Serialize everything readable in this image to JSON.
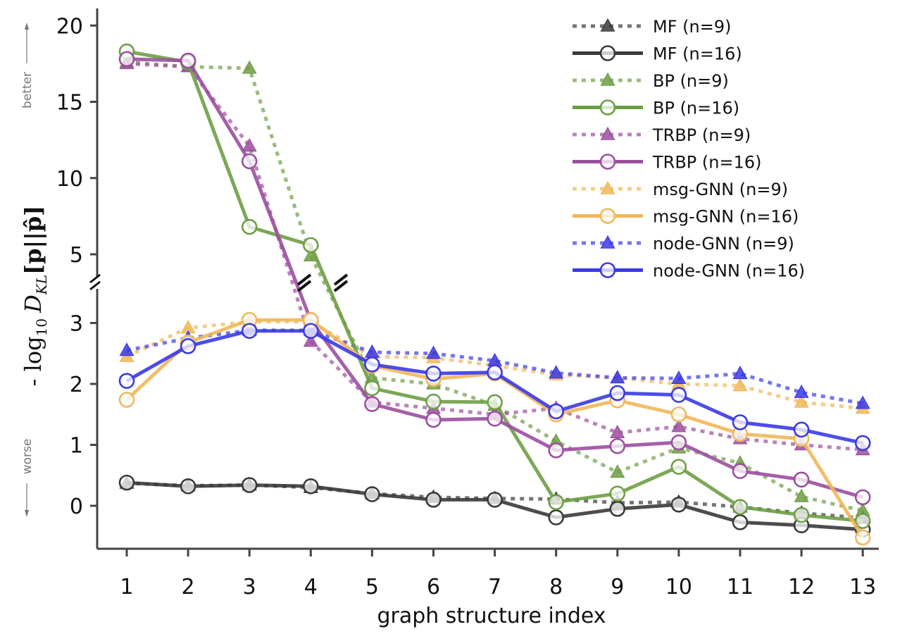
{
  "chart_data": {
    "type": "line",
    "xlabel": "graph structure index",
    "ylabel": "- log₁₀ D_KL[p||p̂]",
    "ylabel_parts": {
      "prefix": "- log",
      "sub10": "10",
      "D": "D",
      "KL": "KL",
      "arg": "[p||p̂]"
    },
    "annotations": {
      "top": "better",
      "bottom": "worse"
    },
    "x": [
      1,
      2,
      3,
      4,
      5,
      6,
      7,
      8,
      9,
      10,
      11,
      12,
      13
    ],
    "x_tick_labels": [
      "1",
      "2",
      "3",
      "4",
      "5",
      "6",
      "7",
      "8",
      "9",
      "10",
      "11",
      "12",
      "13"
    ],
    "y_axis_broken": true,
    "y_lower": {
      "range": [
        -0.7,
        3.5
      ],
      "ticks": [
        0,
        1,
        2,
        3
      ],
      "tick_labels": [
        "0",
        "1",
        "2",
        "3"
      ]
    },
    "y_upper": {
      "range": [
        3.0,
        21.0
      ],
      "ticks": [
        5,
        10,
        15,
        20
      ],
      "tick_labels": [
        "5",
        "10",
        "15",
        "20"
      ]
    },
    "grid": false,
    "legend_position": "top-right",
    "series": [
      {
        "name": "MF (n=9)",
        "color": "#3a3a3a",
        "marker": "triangle",
        "style": "dotted",
        "values": [
          0.37,
          0.33,
          0.34,
          0.3,
          0.2,
          0.14,
          0.12,
          0.11,
          0.05,
          0.06,
          -0.02,
          -0.12,
          -0.2
        ]
      },
      {
        "name": "MF (n=16)",
        "color": "#3a3a3a",
        "marker": "circle",
        "style": "solid",
        "values": [
          0.38,
          0.32,
          0.34,
          0.32,
          0.19,
          0.1,
          0.1,
          -0.19,
          -0.05,
          0.02,
          -0.27,
          -0.32,
          -0.39
        ]
      },
      {
        "name": "BP (n=9)",
        "color": "#6e9e45",
        "marker": "triangle",
        "style": "dotted",
        "values": [
          17.6,
          17.3,
          17.2,
          4.9,
          2.1,
          2.0,
          1.65,
          1.06,
          0.55,
          0.95,
          0.7,
          0.15,
          -0.08
        ]
      },
      {
        "name": "BP (n=16)",
        "color": "#6e9e45",
        "marker": "circle",
        "style": "solid",
        "values": [
          18.3,
          17.6,
          6.8,
          5.6,
          1.93,
          1.71,
          1.7,
          0.06,
          0.2,
          0.64,
          -0.02,
          -0.15,
          -0.25
        ]
      },
      {
        "name": "TRBP (n=9)",
        "color": "#9b4f9e",
        "marker": "triangle",
        "style": "dotted",
        "values": [
          17.5,
          17.3,
          12.1,
          2.7,
          1.7,
          1.6,
          1.5,
          1.6,
          1.2,
          1.3,
          1.1,
          1.0,
          0.92
        ]
      },
      {
        "name": "TRBP (n=16)",
        "color": "#9b4f9e",
        "marker": "circle",
        "style": "solid",
        "values": [
          17.8,
          17.7,
          11.1,
          3.04,
          1.67,
          1.41,
          1.43,
          0.91,
          0.98,
          1.04,
          0.57,
          0.43,
          0.14
        ]
      },
      {
        "name": "msg-GNN (n=9)",
        "color": "#f0b75a",
        "marker": "triangle",
        "style": "dotted",
        "values": [
          2.45,
          2.92,
          3.02,
          3.02,
          2.45,
          2.43,
          2.3,
          2.15,
          2.1,
          2.0,
          1.97,
          1.7,
          1.6
        ]
      },
      {
        "name": "msg-GNN (n=16)",
        "color": "#f0b75a",
        "marker": "circle",
        "style": "solid",
        "values": [
          1.74,
          2.68,
          3.05,
          3.05,
          2.3,
          2.08,
          2.17,
          1.5,
          1.73,
          1.5,
          1.18,
          1.1,
          -0.52
        ]
      },
      {
        "name": "node-GNN (n=9)",
        "color": "#3a3ae6",
        "marker": "triangle",
        "style": "dotted",
        "values": [
          2.55,
          2.75,
          2.88,
          2.88,
          2.52,
          2.5,
          2.38,
          2.18,
          2.1,
          2.09,
          2.17,
          1.86,
          1.68
        ]
      },
      {
        "name": "node-GNN (n=16)",
        "color": "#3a3ae6",
        "marker": "circle",
        "style": "solid",
        "values": [
          2.05,
          2.62,
          2.87,
          2.87,
          2.32,
          2.17,
          2.19,
          1.55,
          1.85,
          1.82,
          1.37,
          1.25,
          1.03
        ]
      }
    ]
  }
}
